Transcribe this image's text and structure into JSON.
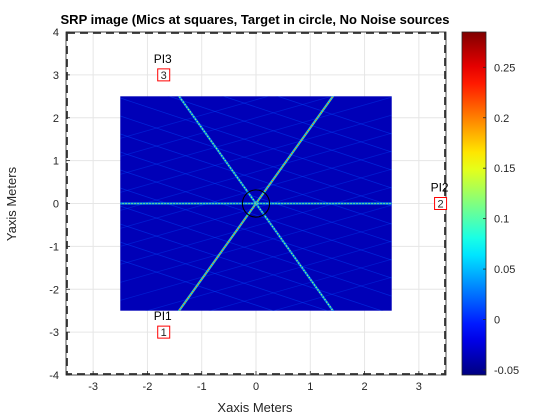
{
  "chart_data": {
    "type": "heatmap",
    "title": "SRP image (Mics at squares, Target in circle, No Noise sources",
    "xlabel": "Xaxis Meters",
    "ylabel": "Yaxis Meters",
    "xlim": [
      -3.5,
      3.5
    ],
    "ylim": [
      -4,
      4
    ],
    "xticks": [
      "-3",
      "-2",
      "-1",
      "0",
      "1",
      "2",
      "3"
    ],
    "yticks": [
      "-4",
      "-3",
      "-2",
      "-1",
      "0",
      "1",
      "2",
      "3",
      "4"
    ],
    "grid": true,
    "heatmap_extent": {
      "x": [
        -2.5,
        2.5
      ],
      "y": [
        -2.5,
        2.5
      ]
    },
    "heatmap_background_value": -0.05,
    "ridge_lines": [
      {
        "from": [
          -1.7,
          3
        ],
        "to": [
          1.7,
          -3
        ],
        "peak": 0.12
      },
      {
        "from": [
          -1.7,
          -3
        ],
        "to": [
          1.7,
          3
        ],
        "peak": 0.2
      },
      {
        "from": [
          -3.4,
          0
        ],
        "to": [
          3.4,
          0
        ],
        "peak": 0.12
      }
    ],
    "colorbar": {
      "range": [
        -0.055,
        0.285
      ],
      "ticks": [
        "0.25",
        "0.2",
        "0.15",
        "0.1",
        "0.05",
        "0",
        "-0.05"
      ]
    },
    "microphones": [
      {
        "name": "PI1",
        "number": "1",
        "x": -1.7,
        "y": -3
      },
      {
        "name": "PI2",
        "number": "2",
        "x": 3.4,
        "y": 0
      },
      {
        "name": "PI3",
        "number": "3",
        "x": -1.7,
        "y": 3
      }
    ],
    "target": {
      "x": 0,
      "y": 0,
      "radius": 0.25
    },
    "room_boundary": {
      "x": [
        -3.5,
        3.5
      ],
      "y": [
        -4,
        4
      ],
      "style": "dashed"
    }
  },
  "colors": {
    "mic_square": "#ff0000",
    "target_circle": "#000000",
    "boundary": "#333333"
  }
}
